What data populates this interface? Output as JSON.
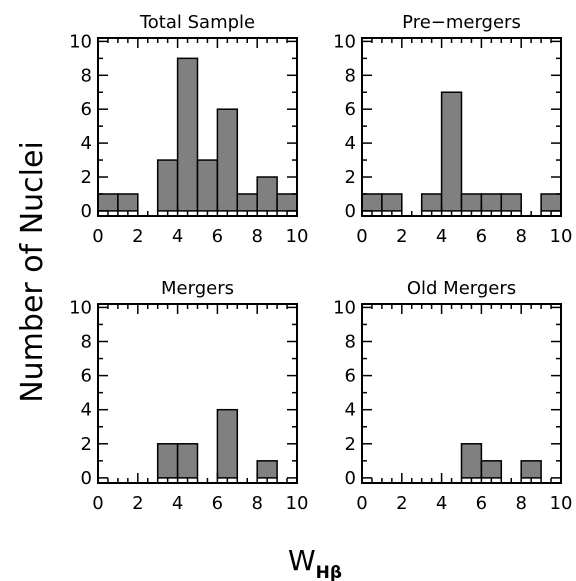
{
  "figure": {
    "ylabel": "Number of Nuclei",
    "xlabel_main": "W",
    "xlabel_sub": "Hβ"
  },
  "colors": {
    "bar_fill": "#808080",
    "bar_stroke": "#000000",
    "axis": "#000000",
    "background": "#ffffff"
  },
  "chart_data": [
    {
      "type": "bar",
      "title": "Total Sample",
      "bin_width": 1,
      "x": [
        0.5,
        1.5,
        2.5,
        3.5,
        4.5,
        5.5,
        6.5,
        7.5,
        8.5,
        9.5
      ],
      "values": [
        1,
        1,
        0,
        3,
        9,
        3,
        6,
        1,
        2,
        1
      ],
      "xlim": [
        0,
        10
      ],
      "ylim": [
        -0.3,
        10.2
      ],
      "xticks": [
        0,
        2,
        4,
        6,
        8,
        10
      ],
      "yticks": [
        0,
        2,
        4,
        6,
        8,
        10
      ],
      "xminor_step": 0.5,
      "yminor_step": 1,
      "grid": false
    },
    {
      "type": "bar",
      "title": "Pre−mergers",
      "bin_width": 1,
      "x": [
        0.5,
        1.5,
        2.5,
        3.5,
        4.5,
        5.5,
        6.5,
        7.5,
        8.5,
        9.5
      ],
      "values": [
        1,
        1,
        0,
        1,
        7,
        1,
        1,
        1,
        0,
        1
      ],
      "xlim": [
        0,
        10
      ],
      "ylim": [
        -0.3,
        10.2
      ],
      "xticks": [
        0,
        2,
        4,
        6,
        8,
        10
      ],
      "yticks": [
        0,
        2,
        4,
        6,
        8,
        10
      ],
      "xminor_step": 0.5,
      "yminor_step": 1,
      "grid": false
    },
    {
      "type": "bar",
      "title": "Mergers",
      "bin_width": 1,
      "x": [
        0.5,
        1.5,
        2.5,
        3.5,
        4.5,
        5.5,
        6.5,
        7.5,
        8.5,
        9.5
      ],
      "values": [
        0,
        0,
        0,
        2,
        2,
        0,
        4,
        0,
        1,
        0
      ],
      "xlim": [
        0,
        10
      ],
      "ylim": [
        -0.3,
        10.2
      ],
      "xticks": [
        0,
        2,
        4,
        6,
        8,
        10
      ],
      "yticks": [
        0,
        2,
        4,
        6,
        8,
        10
      ],
      "xminor_step": 0.5,
      "yminor_step": 1,
      "grid": false
    },
    {
      "type": "bar",
      "title": "Old Mergers",
      "bin_width": 1,
      "x": [
        0.5,
        1.5,
        2.5,
        3.5,
        4.5,
        5.5,
        6.5,
        7.5,
        8.5,
        9.5
      ],
      "values": [
        0,
        0,
        0,
        0,
        0,
        2,
        1,
        0,
        1,
        0
      ],
      "xlim": [
        0,
        10
      ],
      "ylim": [
        -0.3,
        10.2
      ],
      "xticks": [
        0,
        2,
        4,
        6,
        8,
        10
      ],
      "yticks": [
        0,
        2,
        4,
        6,
        8,
        10
      ],
      "xminor_step": 0.5,
      "yminor_step": 1,
      "grid": false
    }
  ]
}
